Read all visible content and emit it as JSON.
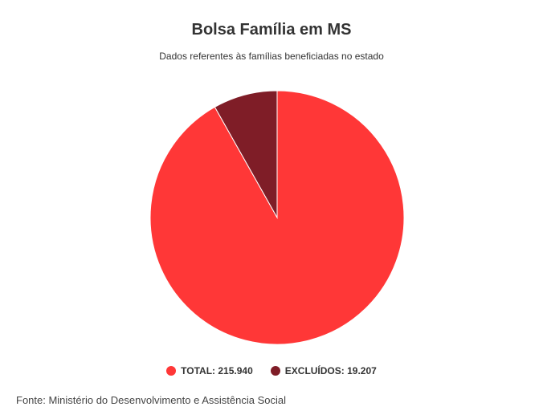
{
  "chart_data": {
    "type": "pie",
    "title": "Bolsa Família em MS",
    "subtitle": "Dados referentes às famílias beneficiadas no estado",
    "slices": [
      {
        "label": "TOTAL",
        "value": 215940,
        "value_text": "215.940",
        "color": "#ff3737"
      },
      {
        "label": "EXCLUÍDOS",
        "value": 19207,
        "value_text": "19.207",
        "color": "#7f1d27"
      }
    ],
    "legend_position": "bottom",
    "start_direction": "clockwise-from-top"
  },
  "legend": {
    "items": [
      {
        "text": "TOTAL: 215.940",
        "color": "#ff3737"
      },
      {
        "text": "EXCLUÍDOS: 19.207",
        "color": "#7f1d27"
      }
    ]
  },
  "source": "Fonte: Ministério do Desenvolvimento e Assistência Social"
}
